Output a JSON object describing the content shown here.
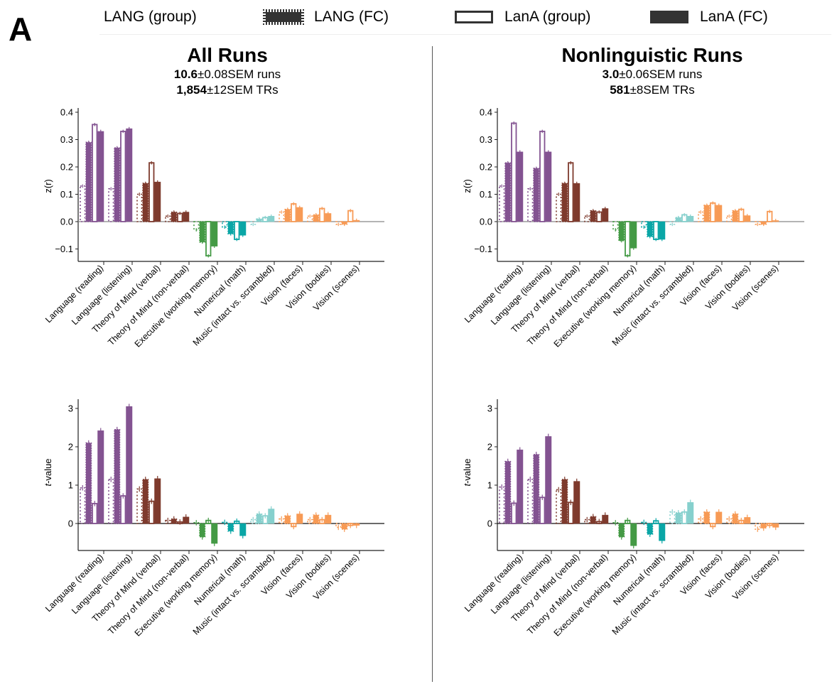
{
  "panel_letter": "A",
  "legend": {
    "items": [
      {
        "label": "LANG (group)",
        "style": "dotted-outline"
      },
      {
        "label": "LANG (FC)",
        "style": "dotted-filled"
      },
      {
        "label": "LanA (group)",
        "style": "outline"
      },
      {
        "label": "LanA (FC)",
        "style": "filled"
      }
    ]
  },
  "columns": [
    {
      "title": "All Runs",
      "runs_bold": "10.6",
      "runs_rest": "±0.08SEM runs",
      "trs_bold": "1,854",
      "trs_rest": "±12SEM TRs"
    },
    {
      "title": "Nonlinguistic Runs",
      "runs_bold": "3.0",
      "runs_rest": "±0.06SEM runs",
      "trs_bold": "581",
      "trs_rest": "±8SEM TRs"
    }
  ],
  "colors": {
    "Language (reading)": "#835391",
    "Language (listening)": "#835391",
    "Theory of Mind (verbal)": "#7e3a2d",
    "Theory of Mind (non-verbal)": "#7e3a2d",
    "Executive (working memory)": "#449a45",
    "Numerical (math)": "#0aa6a6",
    "Music (intact vs. scrambled)": "#86d0cd",
    "Vision (faces)": "#f79a55",
    "Vision (bodies)": "#f79a55",
    "Vision (scenes)": "#f79a55"
  },
  "chart_data": [
    {
      "type": "bar",
      "panel": "All Runs - correlation",
      "ylabel": "z(r)",
      "ylim": [
        -0.15,
        0.4
      ],
      "yticks": [
        "0.4",
        "0.3",
        "0.2",
        "0.1",
        "0.0",
        "−0.1"
      ],
      "ytick_values": [
        0.4,
        0.3,
        0.2,
        0.1,
        0.0,
        -0.1
      ],
      "categories": [
        "Language (reading)",
        "Language (listening)",
        "Theory of Mind (verbal)",
        "Theory of Mind (non-verbal)",
        "Executive (working memory)",
        "Numerical (math)",
        "Music (intact vs. scrambled)",
        "Vision (faces)",
        "Vision (bodies)",
        "Vision (scenes)"
      ],
      "series": [
        {
          "name": "LANG (group)",
          "values": [
            0.13,
            0.12,
            0.1,
            0.02,
            -0.03,
            -0.02,
            -0.01,
            0.035,
            0.02,
            -0.01
          ]
        },
        {
          "name": "LANG (FC)",
          "values": [
            0.29,
            0.27,
            0.14,
            0.035,
            -0.075,
            -0.045,
            0.01,
            0.045,
            0.025,
            -0.01
          ]
        },
        {
          "name": "LanA (group)",
          "values": [
            0.355,
            0.33,
            0.215,
            0.03,
            -0.125,
            -0.065,
            0.015,
            0.065,
            0.048,
            0.04
          ]
        },
        {
          "name": "LanA (FC)",
          "values": [
            0.33,
            0.34,
            0.145,
            0.035,
            -0.09,
            -0.05,
            0.02,
            0.052,
            0.03,
            0.005
          ]
        }
      ]
    },
    {
      "type": "bar",
      "panel": "All Runs - t-value",
      "ylabel": "t-value",
      "ylim": [
        -0.7,
        3.2
      ],
      "yticks": [
        "3",
        "2",
        "1",
        "0"
      ],
      "ytick_values": [
        3,
        2,
        1,
        0
      ],
      "categories": [
        "Language (reading)",
        "Language (listening)",
        "Theory of Mind (verbal)",
        "Theory of Mind (non-verbal)",
        "Executive (working memory)",
        "Numerical (math)",
        "Music (intact vs. scrambled)",
        "Vision (faces)",
        "Vision (bodies)",
        "Vision (scenes)"
      ],
      "series": [
        {
          "name": "LANG (group)",
          "values": [
            0.93,
            1.15,
            0.9,
            0.08,
            0.02,
            0.03,
            0.1,
            0.12,
            0.1,
            -0.1
          ]
        },
        {
          "name": "LANG (FC)",
          "values": [
            2.1,
            2.45,
            1.15,
            0.12,
            -0.35,
            -0.2,
            0.25,
            0.2,
            0.22,
            -0.15
          ]
        },
        {
          "name": "LanA (group)",
          "values": [
            0.52,
            0.72,
            0.58,
            0.04,
            0.08,
            0.06,
            0.2,
            -0.08,
            0.1,
            -0.05
          ]
        },
        {
          "name": "LanA (FC)",
          "values": [
            2.42,
            3.05,
            1.17,
            0.17,
            -0.52,
            -0.32,
            0.38,
            0.25,
            0.22,
            -0.05
          ]
        }
      ]
    },
    {
      "type": "bar",
      "panel": "Nonlinguistic Runs - correlation",
      "ylabel": "z(r)",
      "ylim": [
        -0.15,
        0.4
      ],
      "yticks": [
        "0.4",
        "0.3",
        "0.2",
        "0.1",
        "0.0",
        "−0.1"
      ],
      "ytick_values": [
        0.4,
        0.3,
        0.2,
        0.1,
        0.0,
        -0.1
      ],
      "categories": [
        "Language (reading)",
        "Language (listening)",
        "Theory of Mind (verbal)",
        "Theory of Mind (non-verbal)",
        "Executive (working memory)",
        "Numerical (math)",
        "Music (intact vs. scrambled)",
        "Vision (faces)",
        "Vision (bodies)",
        "Vision (scenes)"
      ],
      "series": [
        {
          "name": "LANG (group)",
          "values": [
            0.13,
            0.12,
            0.1,
            0.02,
            -0.03,
            -0.02,
            -0.01,
            0.035,
            0.02,
            -0.01
          ]
        },
        {
          "name": "LANG (FC)",
          "values": [
            0.215,
            0.195,
            0.14,
            0.04,
            -0.07,
            -0.055,
            0.015,
            0.06,
            0.04,
            -0.01
          ]
        },
        {
          "name": "LanA (group)",
          "values": [
            0.36,
            0.33,
            0.215,
            0.035,
            -0.125,
            -0.065,
            0.025,
            0.068,
            0.045,
            0.037
          ]
        },
        {
          "name": "LanA (FC)",
          "values": [
            0.255,
            0.255,
            0.14,
            0.048,
            -0.097,
            -0.065,
            0.02,
            0.06,
            0.022,
            0.004
          ]
        }
      ]
    },
    {
      "type": "bar",
      "panel": "Nonlinguistic Runs - t-value",
      "ylabel": "t-value",
      "ylim": [
        -0.7,
        3.2
      ],
      "yticks": [
        "3",
        "2",
        "1",
        "0"
      ],
      "ytick_values": [
        3,
        2,
        1,
        0
      ],
      "categories": [
        "Language (reading)",
        "Language (listening)",
        "Theory of Mind (verbal)",
        "Theory of Mind (non-verbal)",
        "Executive (working memory)",
        "Numerical (math)",
        "Music (intact vs. scrambled)",
        "Vision (faces)",
        "Vision (bodies)",
        "Vision (scenes)"
      ],
      "series": [
        {
          "name": "LANG (group)",
          "values": [
            0.95,
            1.15,
            0.88,
            0.1,
            0.02,
            0.03,
            0.3,
            0.12,
            0.12,
            -0.15
          ]
        },
        {
          "name": "LANG (FC)",
          "values": [
            1.62,
            1.8,
            1.15,
            0.18,
            -0.35,
            -0.28,
            0.28,
            0.3,
            0.25,
            -0.12
          ]
        },
        {
          "name": "LanA (group)",
          "values": [
            0.53,
            0.68,
            0.55,
            0.05,
            0.08,
            0.07,
            0.3,
            -0.08,
            0.08,
            -0.05
          ]
        },
        {
          "name": "LanA (FC)",
          "values": [
            1.92,
            2.27,
            1.1,
            0.22,
            -0.58,
            -0.45,
            0.55,
            0.3,
            0.16,
            -0.1
          ]
        }
      ]
    }
  ]
}
